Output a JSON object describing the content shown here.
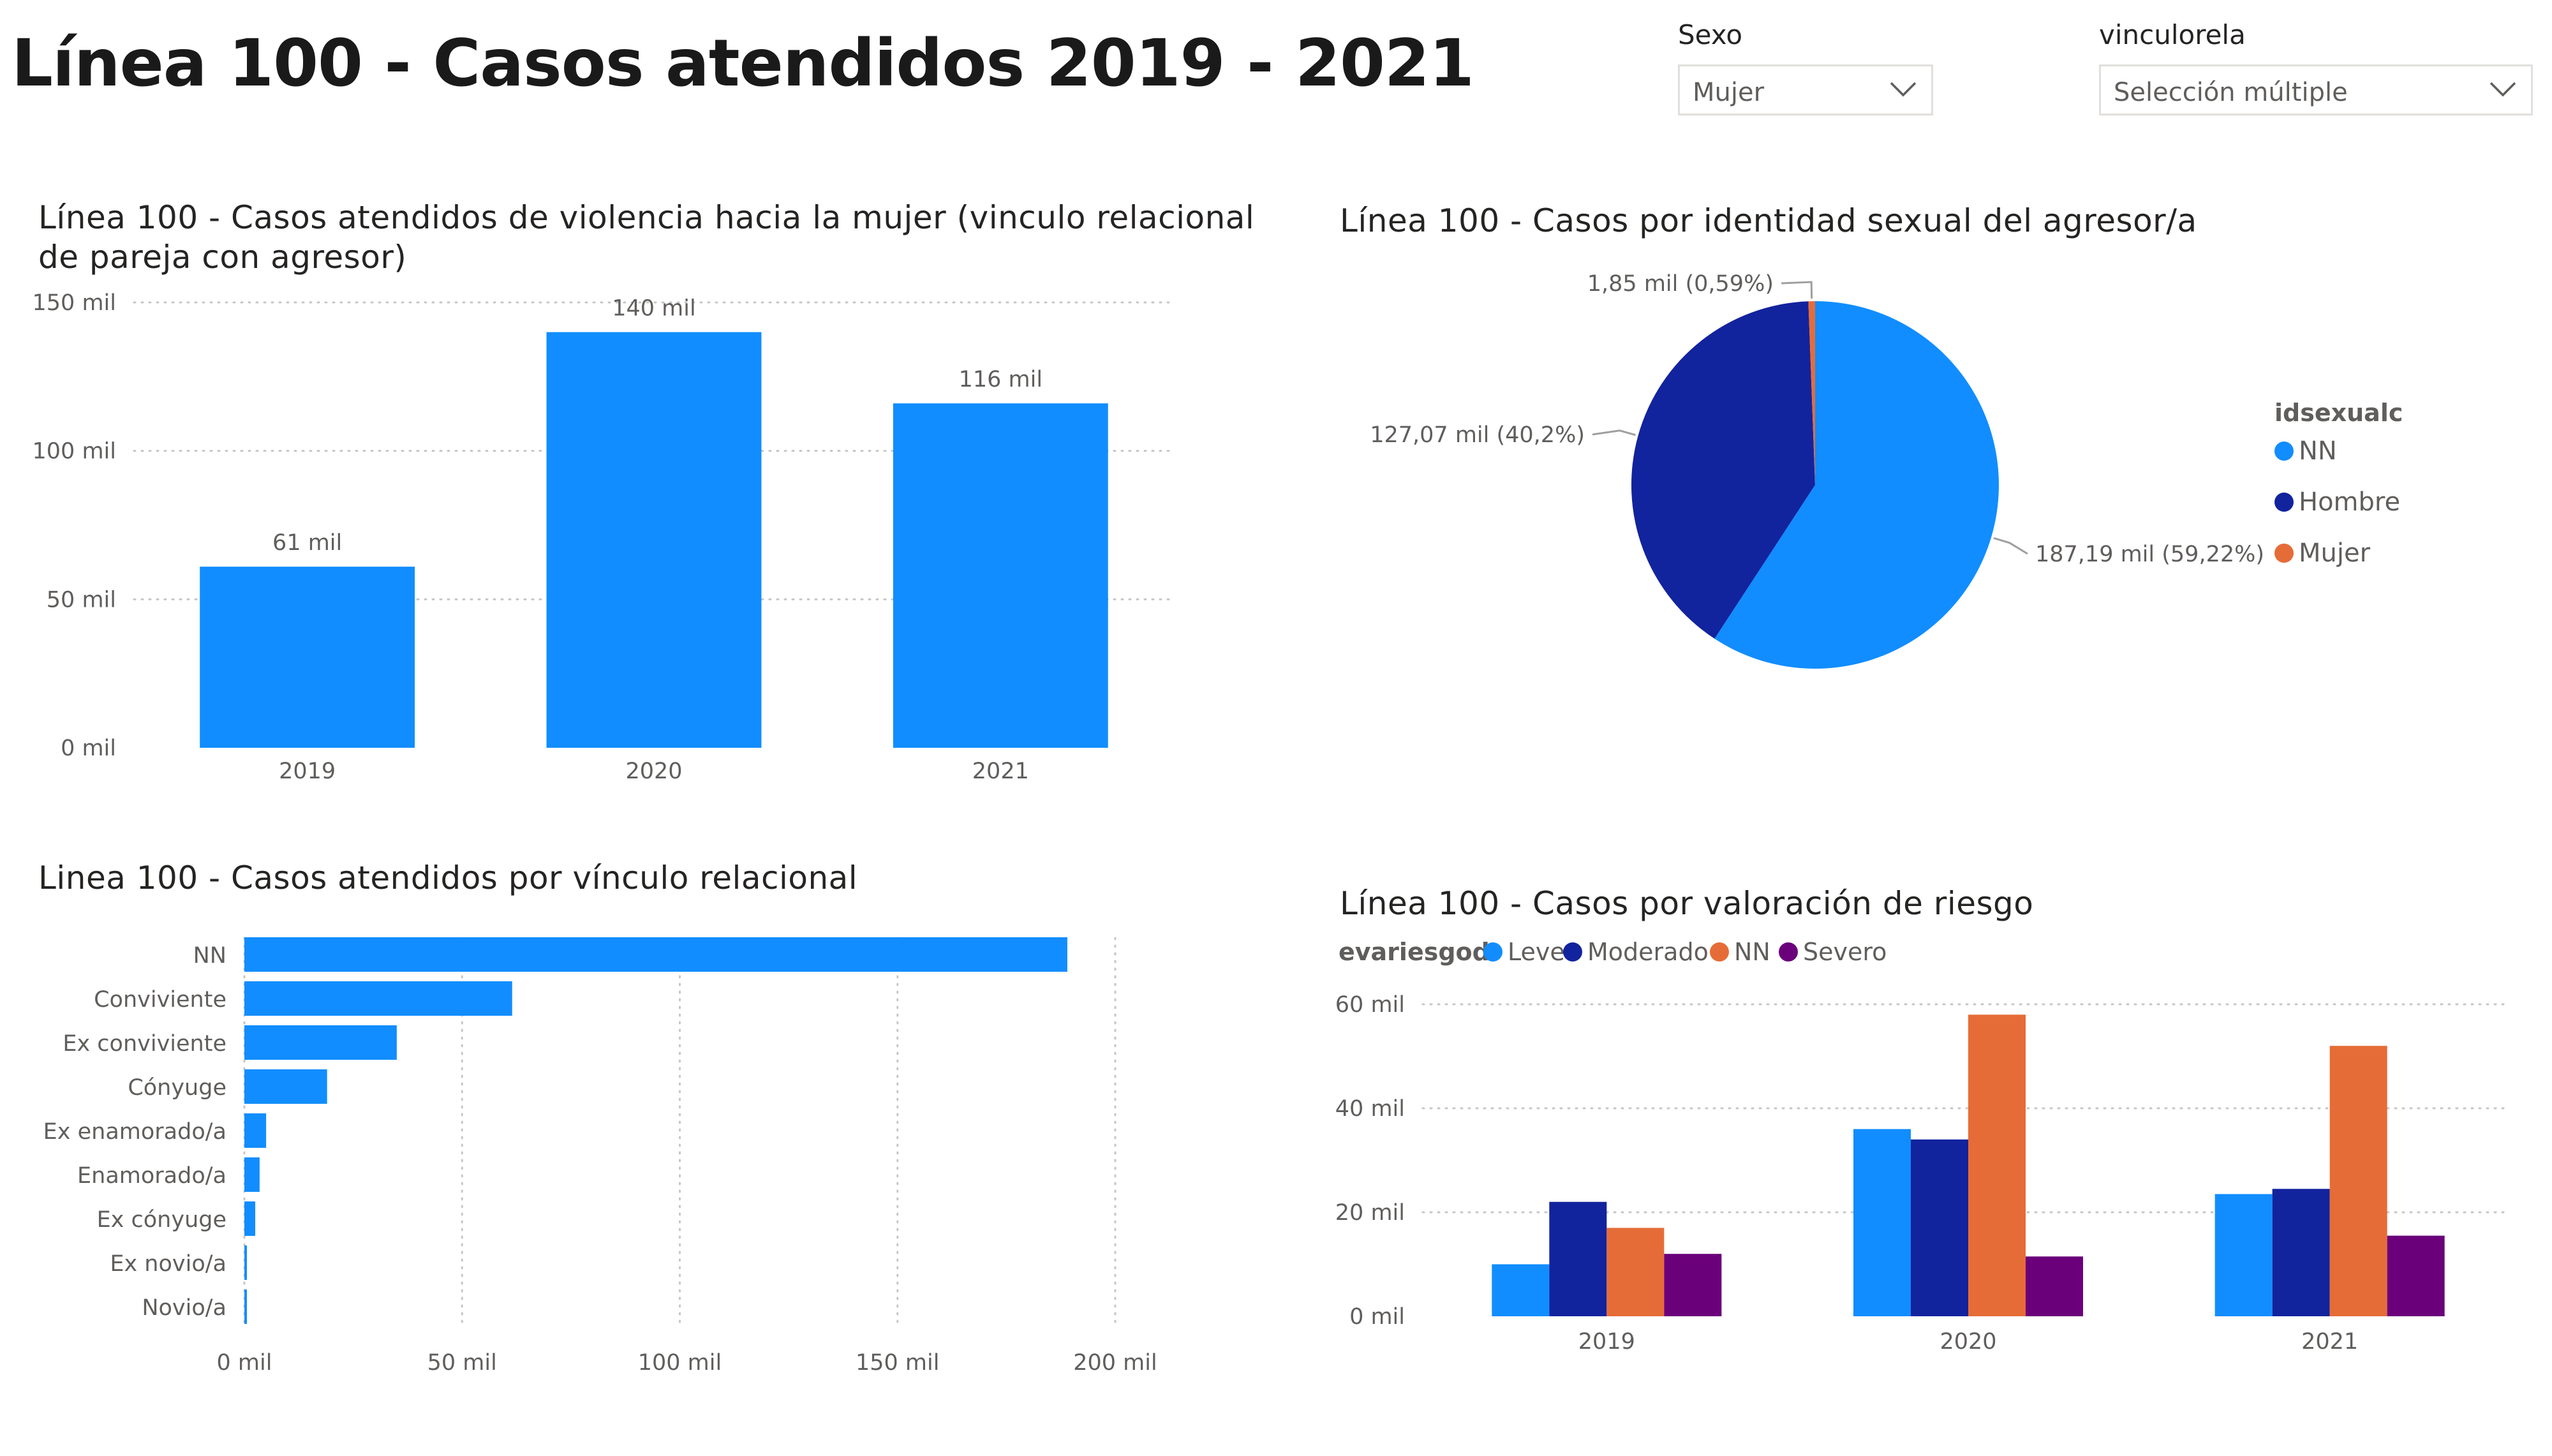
{
  "title": "Línea 100 - Casos atendidos 2019 - 2021",
  "filters": {
    "sexo": {
      "label": "Sexo",
      "value": "Mujer"
    },
    "vinculo": {
      "label": "vinculorela",
      "value": "Selección múltiple"
    }
  },
  "colors": {
    "primary": "#118DFF",
    "dark_blue": "#12239E",
    "orange": "#E66C37",
    "purple": "#6B007B",
    "grid": "#C8C6C4",
    "text": "#605E5C"
  },
  "chart_data": [
    {
      "id": "cases_by_year",
      "type": "bar",
      "title": "Línea 100 - Casos atendidos de violencia hacia la mujer (vinculo relacional de pareja con agresor)",
      "title_lines": [
        "Línea 100 - Casos atendidos de violencia hacia la mujer (vinculo relacional",
        "de pareja con agresor)"
      ],
      "categories": [
        "2019",
        "2020",
        "2021"
      ],
      "values": [
        61000,
        140000,
        116000
      ],
      "data_labels": [
        "61 mil",
        "140 mil",
        "116 mil"
      ],
      "ylim": [
        0,
        150000
      ],
      "yticks": [
        0,
        50000,
        100000,
        150000
      ],
      "ytick_labels": [
        "0 mil",
        "50 mil",
        "100 mil",
        "150 mil"
      ],
      "grid": true,
      "color": "#118DFF"
    },
    {
      "id": "aggressor_identity",
      "type": "pie",
      "title": "Línea 100 - Casos por identidad sexual del agresor/a",
      "legend_title": "idsexualc",
      "legend_position": "right",
      "slices": [
        {
          "name": "NN",
          "value": 187.19,
          "label": "187,19 mil (59,22%)",
          "color": "#118DFF"
        },
        {
          "name": "Hombre",
          "value": 127.07,
          "label": "127,07 mil (40,2%)",
          "color": "#12239E"
        },
        {
          "name": "Mujer",
          "value": 1.85,
          "label": "1,85 mil (0,59%)",
          "color": "#E66C37"
        }
      ]
    },
    {
      "id": "cases_by_relationship",
      "type": "bar",
      "orientation": "horizontal",
      "title": "Linea 100 - Casos atendidos por vínculo relacional",
      "categories": [
        "NN",
        "Conviviente",
        "Ex conviviente",
        "Cónyuge",
        "Ex enamorado/a",
        "Enamorado/a",
        "Ex cónyuge",
        "Ex novio/a",
        "Novio/a"
      ],
      "values": [
        189000,
        61500,
        35000,
        19000,
        5000,
        3500,
        2500,
        500,
        500
      ],
      "xlim": [
        0,
        200000
      ],
      "xticks": [
        0,
        50000,
        100000,
        150000,
        200000
      ],
      "xtick_labels": [
        "0 mil",
        "50 mil",
        "100 mil",
        "150 mil",
        "200 mil"
      ],
      "grid": true,
      "color": "#118DFF"
    },
    {
      "id": "cases_by_risk",
      "type": "bar",
      "title": "Línea 100 - Casos por valoración de riesgo",
      "legend_title": "evariesgod",
      "legend_position": "top-left",
      "categories": [
        "2019",
        "2020",
        "2021"
      ],
      "series": [
        {
          "name": "Leve",
          "values": [
            10,
            36,
            23.5
          ],
          "color": "#118DFF"
        },
        {
          "name": "Moderado",
          "values": [
            22,
            34,
            24.5
          ],
          "color": "#12239E"
        },
        {
          "name": "NN",
          "values": [
            17,
            58,
            52
          ],
          "color": "#E66C37"
        },
        {
          "name": "Severo",
          "values": [
            12,
            11.5,
            15.5
          ],
          "color": "#6B007B"
        }
      ],
      "ylim": [
        0,
        60
      ],
      "yticks": [
        0,
        20,
        40,
        60
      ],
      "ytick_labels": [
        "0 mil",
        "20 mil",
        "40 mil",
        "60 mil"
      ],
      "grid": true
    }
  ]
}
